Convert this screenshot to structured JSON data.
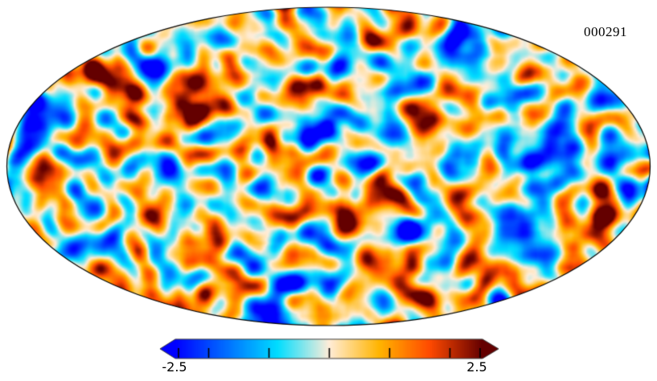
{
  "figure": {
    "background": "#ffffff",
    "outline_color": "#000000",
    "tick_color": "#000000",
    "colorbar_border_color": "#3c3c3c"
  },
  "chart_data": {
    "type": "heatmap",
    "subtype": "all-sky-map",
    "projection": "mollweide",
    "description": "Full-sky simulated CMB temperature anisotropy map (Gaussian random field realization) shown in Mollweide projection with a Planck-style diverging colormap; horizontal colorbar with arrow ends below the map.",
    "annotation": "000291",
    "value_range": [
      -2.5,
      2.5
    ],
    "colorbar": {
      "orientation": "horizontal",
      "arrow_ends": true,
      "min_label": "-2.5",
      "max_label": "2.5",
      "ticks": [
        -2.5,
        -2,
        -1,
        0,
        1,
        2,
        2.5
      ],
      "colormap": "planck",
      "colormap_stops": [
        {
          "pos": 0.0,
          "color": "#0000ff"
        },
        {
          "pos": 0.332,
          "color": "#00ddff"
        },
        {
          "pos": 0.5,
          "color": "#ffedd9"
        },
        {
          "pos": 0.664,
          "color": "#ffb400"
        },
        {
          "pos": 0.828,
          "color": "#ff4b00"
        },
        {
          "pos": 1.0,
          "color": "#640000"
        }
      ]
    },
    "field_generation": {
      "seed": 291,
      "sigma": 1.3,
      "smooth_radius": 4,
      "grid_scale": 2
    }
  }
}
